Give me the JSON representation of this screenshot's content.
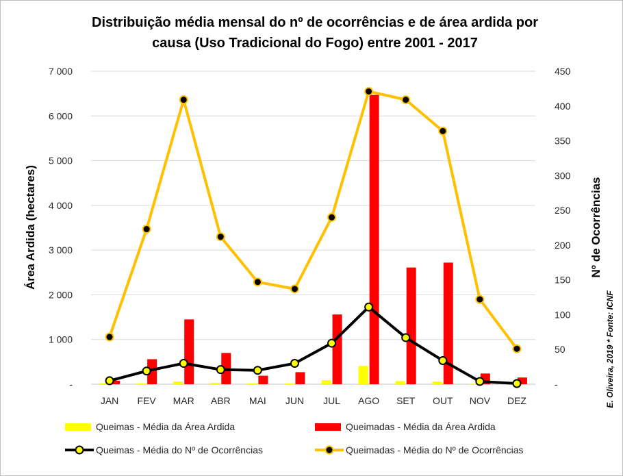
{
  "chart_data": {
    "type": "bar-line-combo",
    "title_line1": "Distribuição média mensal do nº de ocorrências e de área ardida por",
    "title_line2": "causa (Uso Tradicional  do Fogo) entre 2001 - 2017",
    "categories": [
      "JAN",
      "FEV",
      "MAR",
      "ABR",
      "MAI",
      "JUN",
      "JUL",
      "AGO",
      "SET",
      "OUT",
      "NOV",
      "DEZ"
    ],
    "ylabel_left": "Área Ardida (hectares)",
    "ylabel_right": "Nº de Ocorrências",
    "ylim_left": [
      0,
      7000
    ],
    "ylim_right": [
      0,
      450
    ],
    "left_ticks": [
      "-",
      "1 000",
      "2 000",
      "3 000",
      "4 000",
      "5 000",
      "6 000",
      "7 000"
    ],
    "right_ticks": [
      "-",
      "50",
      "100",
      "150",
      "200",
      "250",
      "300",
      "350",
      "400",
      "450"
    ],
    "series": [
      {
        "name": "Queimas - Média da Área Ardida",
        "kind": "bar",
        "axis": "left",
        "color": "#ffff00",
        "values": [
          20,
          20,
          60,
          30,
          20,
          20,
          90,
          410,
          70,
          60,
          10,
          10
        ]
      },
      {
        "name": "Queimadas - Média da Área Ardida",
        "kind": "bar",
        "axis": "left",
        "color": "#ff0000",
        "values": [
          80,
          560,
          1450,
          700,
          190,
          270,
          1560,
          6470,
          2610,
          2720,
          240,
          150
        ]
      },
      {
        "name": "Queimas - Média do Nº de Ocorrências",
        "kind": "line",
        "axis": "right",
        "color": "#000000",
        "marker": "#ffff00",
        "values": [
          5,
          19,
          30,
          21,
          20,
          30,
          59,
          111,
          67,
          34,
          4,
          1
        ]
      },
      {
        "name": "Queimadas - Média do Nº de Ocorrências",
        "kind": "line",
        "axis": "right",
        "color": "#ffc000",
        "marker": "#000000",
        "values": [
          68,
          223,
          409,
          212,
          147,
          137,
          240,
          421,
          409,
          364,
          122,
          51
        ]
      }
    ],
    "credit": "E. Oliveira, 2019 * Fonte: ICNF"
  }
}
